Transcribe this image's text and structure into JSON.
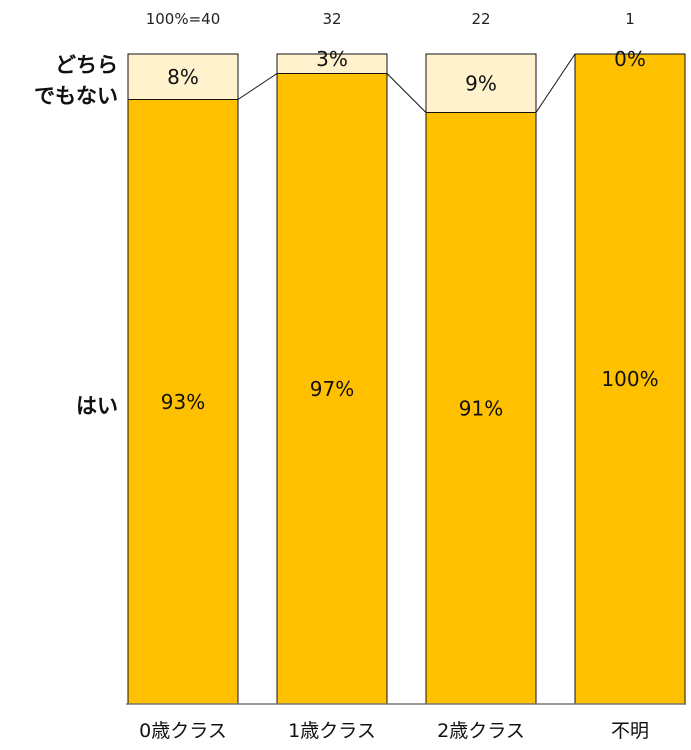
{
  "chart_data": {
    "type": "bar",
    "stacked": true,
    "normalized": true,
    "categories": [
      "0歳クラス",
      "1歳クラス",
      "2歳クラス",
      "不明"
    ],
    "totals": [
      "100%=40",
      "32",
      "22",
      "1"
    ],
    "series": [
      {
        "name": "はい",
        "values": [
          93,
          97,
          91,
          100
        ],
        "labels": [
          "93%",
          "97%",
          "91%",
          "100%"
        ],
        "color": "#FFC000"
      },
      {
        "name": "どちらでもない",
        "label_lines": [
          "どちら",
          "でもない"
        ],
        "values": [
          8,
          3,
          9,
          0
        ],
        "labels": [
          "8%",
          "3%",
          "9%",
          "0%"
        ],
        "color": "#FFF2CC"
      }
    ],
    "ylim": [
      0,
      100
    ],
    "grid": false,
    "legend": "left",
    "connector_lines": true
  }
}
